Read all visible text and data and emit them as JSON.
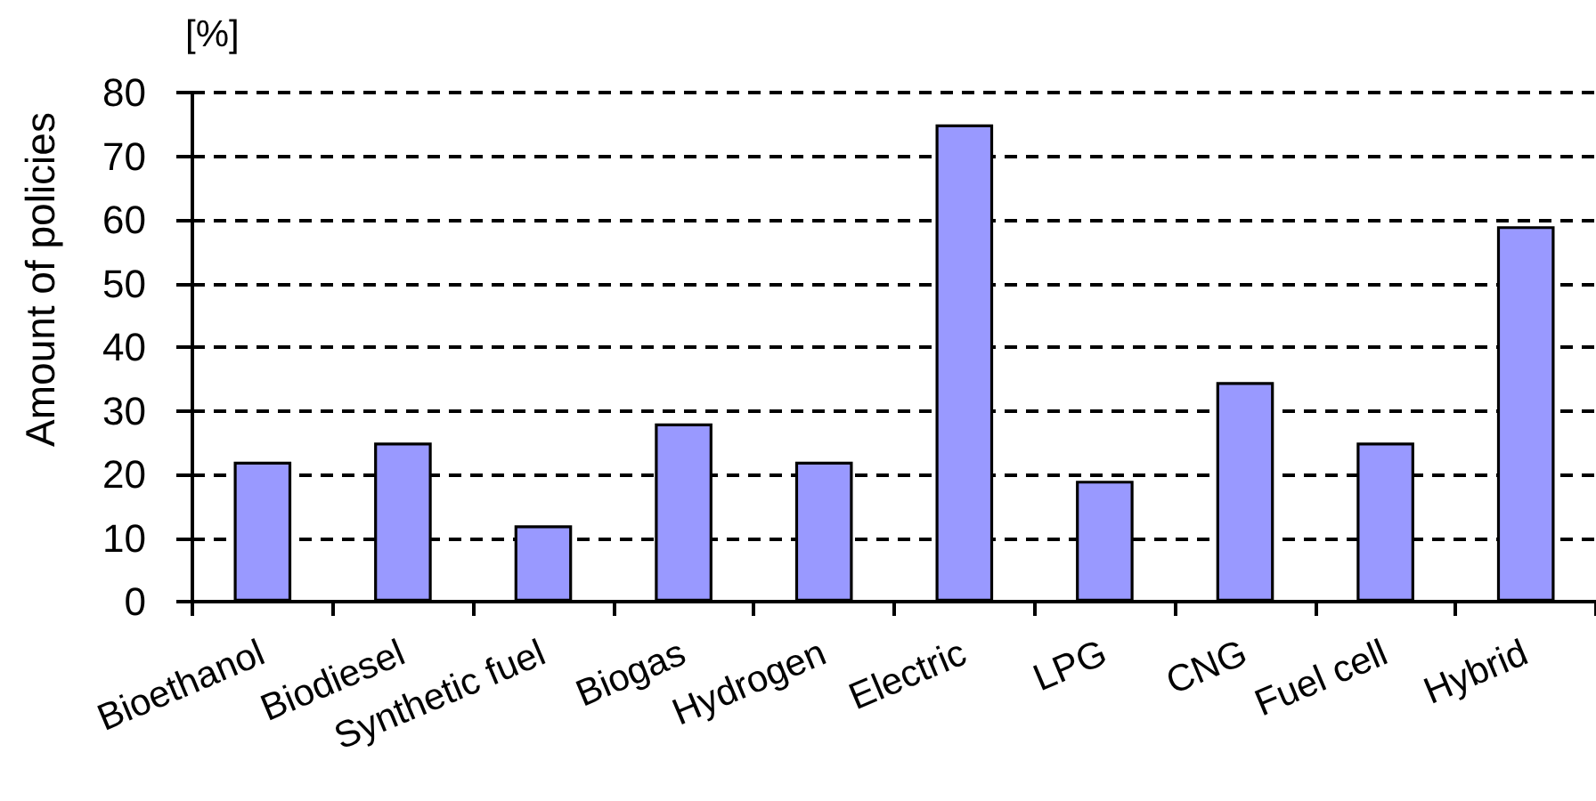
{
  "chart_data": {
    "type": "bar",
    "ylabel": "Amount of policies",
    "annotations": [
      "[%]"
    ],
    "categories": [
      "Bioethanol",
      "Biodiesel",
      "Synthetic fuel",
      "Biogas",
      "Hydrogen",
      "Electric",
      "LPG",
      "CNG",
      "Fuel cell",
      "Hybrid"
    ],
    "values": [
      22,
      25,
      12,
      28,
      22,
      75,
      19,
      34.5,
      25,
      59
    ],
    "color": "#9999ff",
    "ylim": [
      0,
      80
    ],
    "yticks": [
      0,
      10,
      20,
      30,
      40,
      50,
      60,
      70,
      80
    ],
    "grid": "y"
  }
}
